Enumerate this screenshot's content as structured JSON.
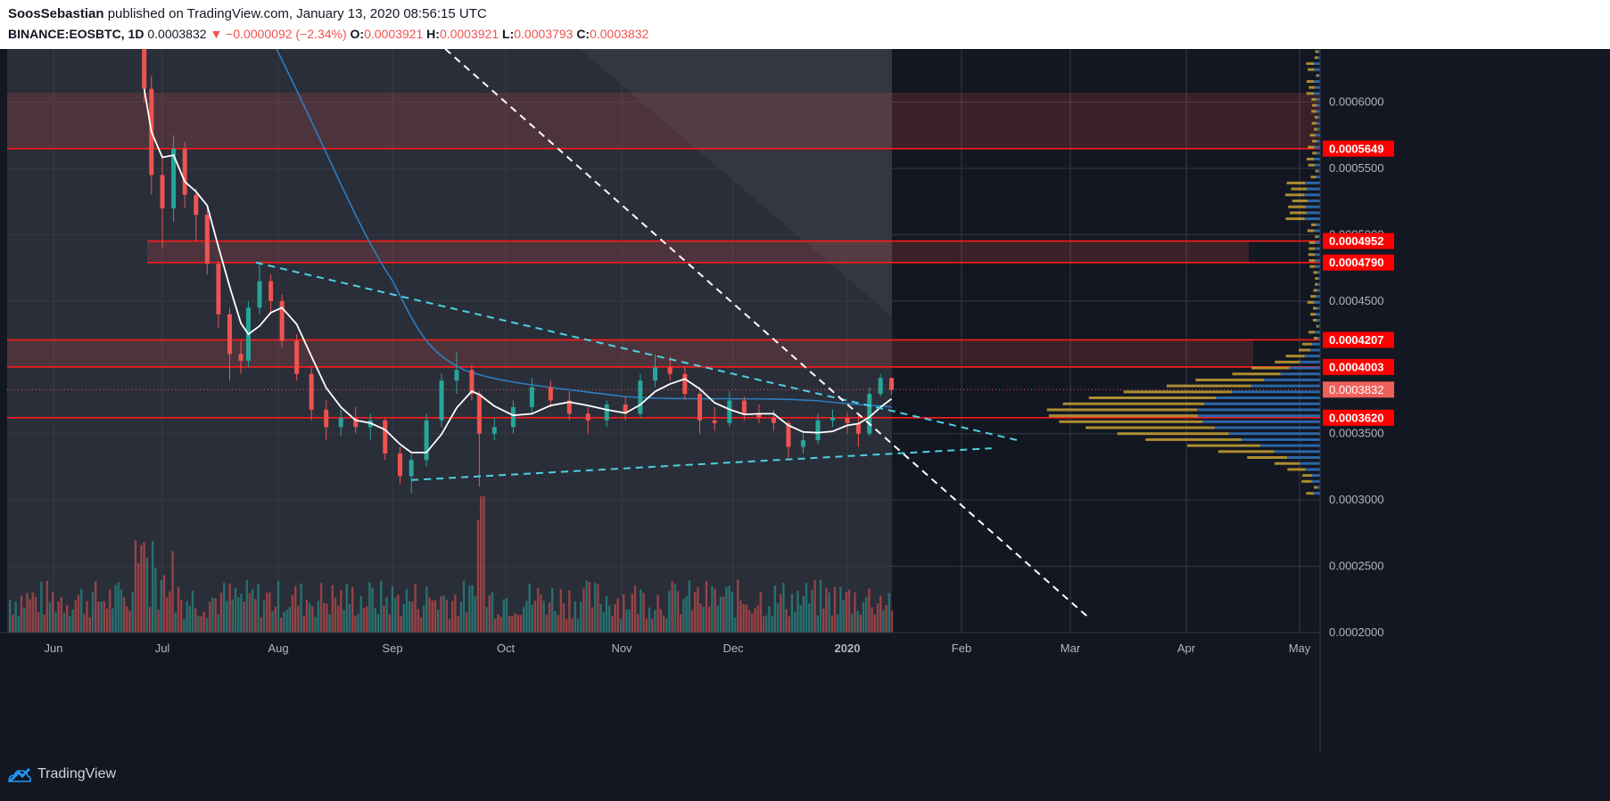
{
  "header": {
    "author": "SoosSebastian",
    "published": "published on TradingView.com, January 13, 2020 08:56:15 UTC",
    "symbol": "BINANCE:EOSBTC, 1D",
    "last": "0.0003832",
    "change": "▼ −0.0000092 (−2.34%)",
    "o_label": "O:",
    "o_value": "0.0003921",
    "h_label": "H:",
    "h_value": "0.0003921",
    "l_label": "L:",
    "l_value": "0.0003793",
    "c_label": "C:",
    "c_value": "0.0003832"
  },
  "footer": {
    "brand": "TradingView"
  },
  "colors": {
    "background": "#131722",
    "up": "#26a69a",
    "down": "#ef5350",
    "level": "#ff1a1a",
    "trend_cyan": "#4dd0e1",
    "ma_white": "#ffffff",
    "ma_blue": "#2e7dbf",
    "vp_gold": "#c8a032",
    "vp_blue": "#2f6fb5"
  },
  "chart_data": {
    "type": "candlestick",
    "symbol": "BINANCE:EOSBTC",
    "interval": "1D",
    "x_ticks": [
      "Jun",
      "Jul",
      "Aug",
      "Sep",
      "Oct",
      "Nov",
      "Dec",
      "2020",
      "Feb",
      "Mar",
      "Apr",
      "May"
    ],
    "y_ticks": [
      "0.0006000",
      "0.0005500",
      "0.0005000",
      "0.0004500",
      "0.0003500",
      "0.0003000",
      "0.0002500",
      "0.0002000"
    ],
    "ylim": [
      0.0002,
      0.00064
    ],
    "price_levels": [
      "0.0005649",
      "0.0004952",
      "0.0004790",
      "0.0004207",
      "0.0004003",
      "0.0003620"
    ],
    "last_price": "0.0003832",
    "resistance_zones": [
      [
        0.0005649,
        0.000607
      ],
      [
        0.000479,
        0.0004952
      ],
      [
        0.0004003,
        0.0004207
      ]
    ],
    "trend_lines": [
      {
        "style": "dashed",
        "color": "cyan",
        "from": [
          "2019-07-26",
          0.000479
        ],
        "to": [
          "2020-02-16",
          0.000345
        ]
      },
      {
        "style": "dashed",
        "color": "cyan",
        "from": [
          "2019-09-06",
          0.000315
        ],
        "to": [
          "2020-02-09",
          0.000339
        ]
      },
      {
        "style": "dashed",
        "color": "white",
        "from": [
          "2019-09-15",
          0.00064
        ],
        "to": [
          "2020-03-06",
          0.000211
        ]
      }
    ],
    "series": [
      {
        "kind": "ohlc",
        "points": [
          [
            "2019-06-26",
            0.00064,
            0.000665,
            0.0006,
            0.00061
          ],
          [
            "2019-06-28",
            0.00061,
            0.00062,
            0.00053,
            0.000545
          ],
          [
            "2019-07-01",
            0.000545,
            0.00056,
            0.00049,
            0.00052
          ],
          [
            "2019-07-04",
            0.00052,
            0.000575,
            0.00051,
            0.000565
          ],
          [
            "2019-07-07",
            0.000565,
            0.00057,
            0.00052,
            0.00053
          ],
          [
            "2019-07-10",
            0.00053,
            0.000535,
            0.000495,
            0.000515
          ],
          [
            "2019-07-13",
            0.000515,
            0.00052,
            0.00047,
            0.000478
          ],
          [
            "2019-07-16",
            0.000478,
            0.00048,
            0.00043,
            0.00044
          ],
          [
            "2019-07-19",
            0.00044,
            0.000445,
            0.00039,
            0.00041
          ],
          [
            "2019-07-22",
            0.00041,
            0.00042,
            0.000395,
            0.000405
          ],
          [
            "2019-07-24",
            0.000405,
            0.00045,
            0.0004,
            0.000445
          ],
          [
            "2019-07-27",
            0.000445,
            0.00048,
            0.00044,
            0.000465
          ],
          [
            "2019-07-30",
            0.000465,
            0.00047,
            0.00044,
            0.00045
          ],
          [
            "2019-08-02",
            0.00045,
            0.000455,
            0.000415,
            0.00042
          ],
          [
            "2019-08-06",
            0.00042,
            0.000425,
            0.00039,
            0.000395
          ],
          [
            "2019-08-10",
            0.000395,
            0.0004,
            0.00036,
            0.000368
          ],
          [
            "2019-08-14",
            0.000368,
            0.000375,
            0.000345,
            0.000355
          ],
          [
            "2019-08-18",
            0.000355,
            0.000368,
            0.000348,
            0.000362
          ],
          [
            "2019-08-22",
            0.000362,
            0.00037,
            0.00035,
            0.000355
          ],
          [
            "2019-08-26",
            0.000355,
            0.000365,
            0.000345,
            0.00036
          ],
          [
            "2019-08-30",
            0.00036,
            0.000362,
            0.00033,
            0.000335
          ],
          [
            "2019-09-03",
            0.000335,
            0.00034,
            0.000312,
            0.000318
          ],
          [
            "2019-09-06",
            0.000318,
            0.000335,
            0.000305,
            0.00033
          ],
          [
            "2019-09-10",
            0.00033,
            0.000365,
            0.000325,
            0.00036
          ],
          [
            "2019-09-14",
            0.00036,
            0.000395,
            0.000355,
            0.00039
          ],
          [
            "2019-09-18",
            0.00039,
            0.000412,
            0.00038,
            0.000398
          ],
          [
            "2019-09-22",
            0.000398,
            0.000402,
            0.000375,
            0.00038
          ],
          [
            "2019-09-24",
            0.00038,
            0.000382,
            0.00031,
            0.00035
          ],
          [
            "2019-09-28",
            0.00035,
            0.000362,
            0.000345,
            0.000355
          ],
          [
            "2019-10-03",
            0.000355,
            0.000375,
            0.00035,
            0.00037
          ],
          [
            "2019-10-08",
            0.00037,
            0.000392,
            0.000365,
            0.000385
          ],
          [
            "2019-10-13",
            0.000385,
            0.00039,
            0.00037,
            0.000375
          ],
          [
            "2019-10-18",
            0.000375,
            0.000382,
            0.00036,
            0.000365
          ],
          [
            "2019-10-23",
            0.000365,
            0.00037,
            0.00035,
            0.00036
          ],
          [
            "2019-10-28",
            0.00036,
            0.000375,
            0.000355,
            0.000372
          ],
          [
            "2019-11-02",
            0.000372,
            0.000378,
            0.00036,
            0.000365
          ],
          [
            "2019-11-06",
            0.000365,
            0.000395,
            0.000362,
            0.00039
          ],
          [
            "2019-11-10",
            0.00039,
            0.00041,
            0.000385,
            0.0004
          ],
          [
            "2019-11-14",
            0.0004,
            0.000408,
            0.00039,
            0.000395
          ],
          [
            "2019-11-18",
            0.000395,
            0.0004,
            0.000375,
            0.00038
          ],
          [
            "2019-11-22",
            0.00038,
            0.000385,
            0.00035,
            0.00036
          ],
          [
            "2019-11-26",
            0.00036,
            0.00037,
            0.000352,
            0.000358
          ],
          [
            "2019-11-30",
            0.000358,
            0.000382,
            0.000355,
            0.000375
          ],
          [
            "2019-12-04",
            0.000375,
            0.000378,
            0.00036,
            0.000365
          ],
          [
            "2019-12-08",
            0.000365,
            0.000372,
            0.000358,
            0.000362
          ],
          [
            "2019-12-12",
            0.000362,
            0.000368,
            0.000352,
            0.000358
          ],
          [
            "2019-12-16",
            0.000358,
            0.00036,
            0.00033,
            0.00034
          ],
          [
            "2019-12-20",
            0.00034,
            0.00035,
            0.000335,
            0.000345
          ],
          [
            "2019-12-24",
            0.000345,
            0.000365,
            0.000342,
            0.00036
          ],
          [
            "2019-12-28",
            0.00036,
            0.000368,
            0.000355,
            0.000362
          ],
          [
            "2020-01-01",
            0.000362,
            0.000366,
            0.00035,
            0.000358
          ],
          [
            "2020-01-04",
            0.000358,
            0.000365,
            0.00034,
            0.00035
          ],
          [
            "2020-01-07",
            0.00035,
            0.000385,
            0.000348,
            0.00038
          ],
          [
            "2020-01-10",
            0.00038,
            0.000395,
            0.000378,
            0.000392
          ],
          [
            "2020-01-13",
            0.000392,
            0.000392,
            0.000379,
            0.000383
          ]
        ]
      }
    ]
  }
}
